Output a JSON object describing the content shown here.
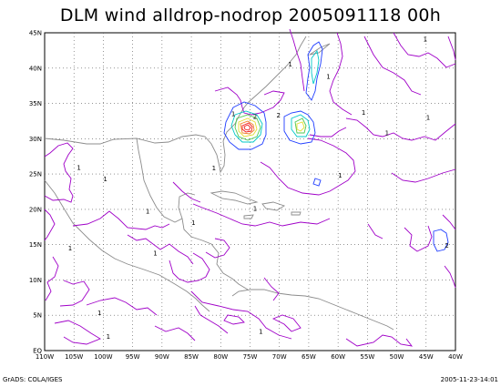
{
  "title": "DLM wind alldrop-nodrop 2005091118 00h",
  "footer": {
    "left": "GrADS: COLA/IGES",
    "right": "2005-11-23-14:01"
  },
  "axes": {
    "x_labels": [
      "110W",
      "105W",
      "100W",
      "95W",
      "90W",
      "85W",
      "80W",
      "75W",
      "70W",
      "65W",
      "60W",
      "55W",
      "50W",
      "45W",
      "40W"
    ],
    "y_labels": [
      "EQ",
      "5N",
      "10N",
      "15N",
      "20N",
      "25N",
      "30N",
      "35N",
      "40N",
      "45N"
    ],
    "lon_range": [
      -110,
      -40
    ],
    "lat_range": [
      0,
      45
    ],
    "grid": "dotted"
  },
  "colors": {
    "coast": "#8c8c8c",
    "contour_purple": "#a000c8",
    "contour_blue": "#1e3cff",
    "contour_cyan": "#00c8c8",
    "contour_green": "#50c850",
    "contour_yellow": "#e6dc32",
    "contour_orange": "#f08228",
    "contour_red": "#f01e1e"
  },
  "contour_labels": [
    "1",
    "1",
    "1",
    "1",
    "1",
    "2",
    "2",
    "1",
    "1",
    "1",
    "1",
    "1",
    "1",
    "1",
    "1",
    "1",
    "1",
    "1",
    "2",
    "1",
    "1",
    "1"
  ]
}
